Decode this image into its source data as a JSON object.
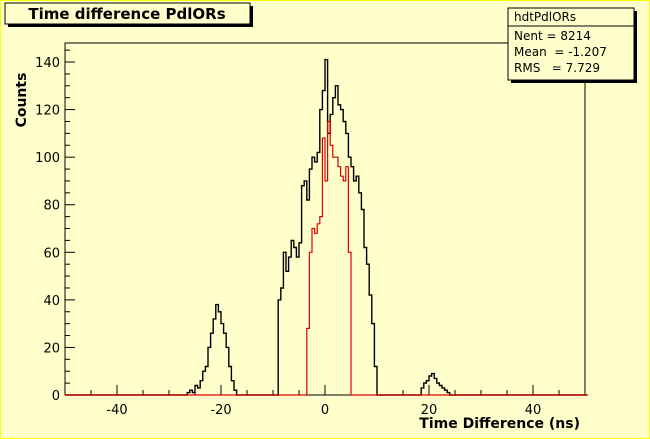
{
  "colors": {
    "background": "#ffffcc",
    "frame": "#000000",
    "series_all": "#000000",
    "series_subset": "#e00000"
  },
  "title_box": {
    "text": "Time difference PdlORs"
  },
  "stats_box": {
    "name": "hdtPdlORs",
    "lines": [
      "Nent = 8214",
      "Mean  = -1.207",
      "RMS   = 7.729"
    ]
  },
  "chart_data": {
    "type": "histogram",
    "title": "Time difference PdlORs",
    "xlabel": "Time Difference (ns)",
    "ylabel": "Counts",
    "xlim": [
      -50,
      50
    ],
    "ylim": [
      0,
      148
    ],
    "xticks": [
      -40,
      -20,
      0,
      20,
      40
    ],
    "yticks": [
      0,
      20,
      40,
      60,
      80,
      100,
      120,
      140
    ],
    "grid": false,
    "bin_width": 0.5,
    "series": [
      {
        "color": "#000000",
        "points": [
          [
            -50,
            0
          ],
          [
            -27,
            0
          ],
          [
            -26.5,
            1
          ],
          [
            -26,
            2
          ],
          [
            -25.5,
            1
          ],
          [
            -25,
            4
          ],
          [
            -24.5,
            3
          ],
          [
            -24,
            6
          ],
          [
            -23.5,
            10
          ],
          [
            -23,
            12
          ],
          [
            -22.5,
            20
          ],
          [
            -22,
            26
          ],
          [
            -21.5,
            32
          ],
          [
            -21,
            38
          ],
          [
            -20.5,
            35
          ],
          [
            -20,
            30
          ],
          [
            -19.5,
            26
          ],
          [
            -19,
            20
          ],
          [
            -18.5,
            12
          ],
          [
            -18,
            6
          ],
          [
            -17.5,
            2
          ],
          [
            -17,
            0
          ],
          [
            -16.5,
            0
          ],
          [
            -9.5,
            0
          ],
          [
            -9,
            40
          ],
          [
            -8.5,
            45
          ],
          [
            -8,
            60
          ],
          [
            -7.5,
            52
          ],
          [
            -7,
            58
          ],
          [
            -6.5,
            65
          ],
          [
            -6,
            62
          ],
          [
            -5.5,
            58
          ],
          [
            -5,
            64
          ],
          [
            -4.5,
            88
          ],
          [
            -4,
            90
          ],
          [
            -3.5,
            82
          ],
          [
            -3,
            95
          ],
          [
            -2.5,
            100
          ],
          [
            -2,
            98
          ],
          [
            -1.5,
            102
          ],
          [
            -1,
            120
          ],
          [
            -0.5,
            128
          ],
          [
            0,
            141
          ],
          [
            0.5,
            110
          ],
          [
            1,
            118
          ],
          [
            1.5,
            125
          ],
          [
            2,
            130
          ],
          [
            2.5,
            122
          ],
          [
            3,
            120
          ],
          [
            3.5,
            115
          ],
          [
            4,
            110
          ],
          [
            4.5,
            100
          ],
          [
            5,
            96
          ],
          [
            5.5,
            90
          ],
          [
            6,
            92
          ],
          [
            6.5,
            85
          ],
          [
            7,
            78
          ],
          [
            7.5,
            62
          ],
          [
            8,
            55
          ],
          [
            8.5,
            42
          ],
          [
            9,
            30
          ],
          [
            9.5,
            12
          ],
          [
            10,
            0
          ],
          [
            18,
            0
          ],
          [
            18.5,
            3
          ],
          [
            19,
            5
          ],
          [
            19.5,
            6
          ],
          [
            20,
            8
          ],
          [
            20.5,
            9
          ],
          [
            21,
            7
          ],
          [
            21.5,
            5
          ],
          [
            22,
            4
          ],
          [
            22.5,
            3
          ],
          [
            23,
            2
          ],
          [
            23.5,
            1
          ],
          [
            24,
            0
          ],
          [
            50,
            0
          ]
        ]
      },
      {
        "color": "#e00000",
        "points": [
          [
            -50,
            0
          ],
          [
            -4,
            0
          ],
          [
            -3.5,
            28
          ],
          [
            -3,
            60
          ],
          [
            -2.5,
            70
          ],
          [
            -2,
            68
          ],
          [
            -1.5,
            72
          ],
          [
            -1,
            75
          ],
          [
            -0.5,
            108
          ],
          [
            0,
            90
          ],
          [
            0.5,
            115
          ],
          [
            1,
            105
          ],
          [
            1.5,
            100
          ],
          [
            2,
            100
          ],
          [
            2.5,
            96
          ],
          [
            3,
            92
          ],
          [
            3.5,
            90
          ],
          [
            4,
            96
          ],
          [
            4.5,
            60
          ],
          [
            5,
            0
          ],
          [
            50,
            0
          ]
        ]
      }
    ]
  }
}
